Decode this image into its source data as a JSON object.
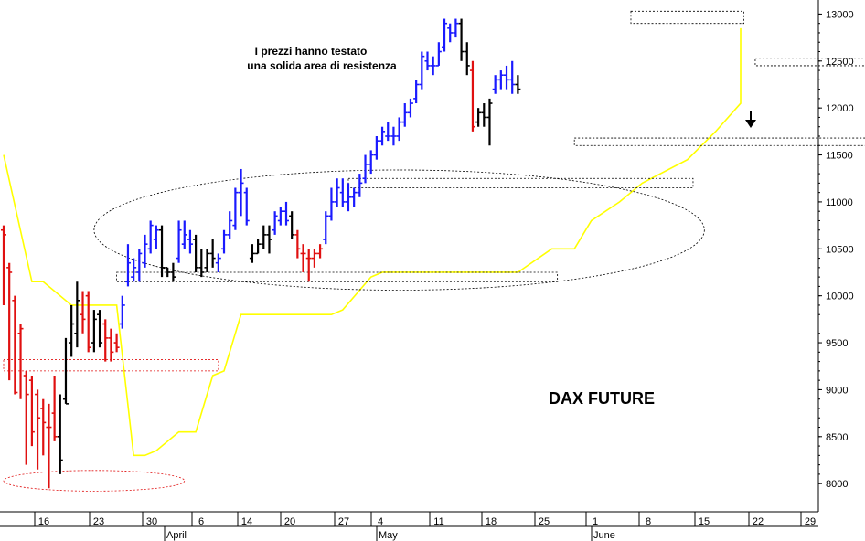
{
  "chart_data": {
    "type": "ohlc",
    "title": "DAX FUTURE",
    "annotation": {
      "line1": "I prezzi hanno testato",
      "line2": "una solida area di resistenza"
    },
    "ylim": [
      7700,
      13150
    ],
    "y_ticks": [
      "8000",
      "8500",
      "9000",
      "9500",
      "10000",
      "10500",
      "11000",
      "11500",
      "12000",
      "12500",
      "13000"
    ],
    "x_ticks": [
      "16",
      "23",
      "30",
      "6",
      "14",
      "20",
      "27",
      "4",
      "11",
      "18",
      "25",
      "1",
      "8",
      "15",
      "22",
      "29"
    ],
    "months": [
      "April",
      "May",
      "June"
    ],
    "colors": {
      "up": "#1a1aff",
      "down": "#e01010",
      "neutral": "#000000",
      "stop_line": "#ffff00",
      "zones": "#000000",
      "support_zone": "#e01010"
    },
    "bars": [
      {
        "c": "red",
        "h": 10750,
        "l": 9900,
        "o": 10700,
        "cl": 10650
      },
      {
        "c": "red",
        "h": 10350,
        "l": 9100,
        "o": 10300,
        "cl": 10250
      },
      {
        "c": "red",
        "h": 10000,
        "l": 8950,
        "o": 9950,
        "cl": 8970
      },
      {
        "c": "red",
        "h": 9700,
        "l": 8900,
        "o": 9600,
        "cl": 9650
      },
      {
        "c": "red",
        "h": 9200,
        "l": 8200,
        "o": 9150,
        "cl": 8950
      },
      {
        "c": "red",
        "h": 9150,
        "l": 8400,
        "o": 9100,
        "cl": 8550
      },
      {
        "c": "red",
        "h": 9000,
        "l": 8150,
        "o": 8950,
        "cl": 8700
      },
      {
        "c": "red",
        "h": 8900,
        "l": 8300,
        "o": 8800,
        "cl": 8650
      },
      {
        "c": "red",
        "h": 8850,
        "l": 7950,
        "o": 8600,
        "cl": 8600
      },
      {
        "c": "red",
        "h": 9150,
        "l": 8450,
        "o": 8750,
        "cl": 8500
      },
      {
        "c": "black",
        "h": 8950,
        "l": 8100,
        "o": 8500,
        "cl": 8250
      },
      {
        "c": "black",
        "h": 9550,
        "l": 8850,
        "o": 8900,
        "cl": 8850
      },
      {
        "c": "black",
        "h": 9900,
        "l": 9350,
        "o": 9500,
        "cl": 9700
      },
      {
        "c": "black",
        "h": 10150,
        "l": 9450,
        "o": 9600,
        "cl": 9950
      },
      {
        "c": "red",
        "h": 10050,
        "l": 9600,
        "o": 9800,
        "cl": 9750
      },
      {
        "c": "red",
        "h": 10050,
        "l": 9400,
        "o": 10000,
        "cl": 9450
      },
      {
        "c": "black",
        "h": 9850,
        "l": 9400,
        "o": 9500,
        "cl": 9750
      },
      {
        "c": "black",
        "h": 9850,
        "l": 9450,
        "o": 9800,
        "cl": 9500
      },
      {
        "c": "red",
        "h": 9750,
        "l": 9300,
        "o": 9700,
        "cl": 9550
      },
      {
        "c": "red",
        "h": 9650,
        "l": 9300,
        "o": 9550,
        "cl": 9400
      },
      {
        "c": "red",
        "h": 9600,
        "l": 9400,
        "o": 9500,
        "cl": 9450
      },
      {
        "c": "blue",
        "h": 10000,
        "l": 9650,
        "o": 9700,
        "cl": 9900
      },
      {
        "c": "blue",
        "h": 10550,
        "l": 10100,
        "o": 10150,
        "cl": 10350
      },
      {
        "c": "blue",
        "h": 10400,
        "l": 10150,
        "o": 10200,
        "cl": 10300
      },
      {
        "c": "blue",
        "h": 10500,
        "l": 10150,
        "o": 10250,
        "cl": 10450
      },
      {
        "c": "blue",
        "h": 10650,
        "l": 10300,
        "o": 10350,
        "cl": 10550
      },
      {
        "c": "blue",
        "h": 10800,
        "l": 10450,
        "o": 10500,
        "cl": 10750
      },
      {
        "c": "blue",
        "h": 10750,
        "l": 10500,
        "o": 10600,
        "cl": 10700
      },
      {
        "c": "black",
        "h": 10750,
        "l": 10200,
        "o": 10700,
        "cl": 10300
      },
      {
        "c": "black",
        "h": 10300,
        "l": 10200,
        "o": 10300,
        "cl": 10250
      },
      {
        "c": "black",
        "h": 10350,
        "l": 10150,
        "o": 10250,
        "cl": 10200
      },
      {
        "c": "blue",
        "h": 10800,
        "l": 10350,
        "o": 10400,
        "cl": 10700
      },
      {
        "c": "blue",
        "h": 10800,
        "l": 10500,
        "o": 10550,
        "cl": 10650
      },
      {
        "c": "blue",
        "h": 10700,
        "l": 10450,
        "o": 10600,
        "cl": 10550
      },
      {
        "c": "black",
        "h": 10650,
        "l": 10250,
        "o": 10600,
        "cl": 10300
      },
      {
        "c": "black",
        "h": 10500,
        "l": 10200,
        "o": 10300,
        "cl": 10250
      },
      {
        "c": "black",
        "h": 10500,
        "l": 10250,
        "o": 10300,
        "cl": 10450
      },
      {
        "c": "black",
        "h": 10600,
        "l": 10300,
        "o": 10450,
        "cl": 10400
      },
      {
        "c": "blue",
        "h": 10450,
        "l": 10250,
        "o": 10350,
        "cl": 10400
      },
      {
        "c": "blue",
        "h": 10700,
        "l": 10450,
        "o": 10500,
        "cl": 10650
      },
      {
        "c": "blue",
        "h": 10900,
        "l": 10600,
        "o": 10650,
        "cl": 10800
      },
      {
        "c": "blue",
        "h": 11150,
        "l": 10700,
        "o": 10750,
        "cl": 11100
      },
      {
        "c": "blue",
        "h": 11350,
        "l": 10850,
        "o": 11100,
        "cl": 11200
      },
      {
        "c": "blue",
        "h": 11150,
        "l": 10750,
        "o": 11100,
        "cl": 10800
      },
      {
        "c": "black",
        "h": 10550,
        "l": 10350,
        "o": 10400,
        "cl": 10450
      },
      {
        "c": "black",
        "h": 10600,
        "l": 10450,
        "o": 10450,
        "cl": 10550
      },
      {
        "c": "black",
        "h": 10750,
        "l": 10500,
        "o": 10550,
        "cl": 10650
      },
      {
        "c": "black",
        "h": 10750,
        "l": 10450,
        "o": 10650,
        "cl": 10600
      },
      {
        "c": "blue",
        "h": 10900,
        "l": 10650,
        "o": 10700,
        "cl": 10850
      },
      {
        "c": "blue",
        "h": 10950,
        "l": 10750,
        "o": 10800,
        "cl": 10900
      },
      {
        "c": "blue",
        "h": 11000,
        "l": 10750,
        "o": 10900,
        "cl": 10800
      },
      {
        "c": "black",
        "h": 10900,
        "l": 10600,
        "o": 10850,
        "cl": 10650
      },
      {
        "c": "red",
        "h": 10700,
        "l": 10400,
        "o": 10650,
        "cl": 10500
      },
      {
        "c": "red",
        "h": 10550,
        "l": 10250,
        "o": 10450,
        "cl": 10450
      },
      {
        "c": "red",
        "h": 10500,
        "l": 10150,
        "o": 10400,
        "cl": 10400
      },
      {
        "c": "red",
        "h": 10500,
        "l": 10300,
        "o": 10400,
        "cl": 10450
      },
      {
        "c": "red",
        "h": 10550,
        "l": 10400,
        "o": 10450,
        "cl": 10500
      },
      {
        "c": "blue",
        "h": 10900,
        "l": 10550,
        "o": 10600,
        "cl": 10850
      },
      {
        "c": "blue",
        "h": 11150,
        "l": 10800,
        "o": 10850,
        "cl": 11000
      },
      {
        "c": "blue",
        "h": 11250,
        "l": 10950,
        "o": 11000,
        "cl": 11150
      },
      {
        "c": "blue",
        "h": 11250,
        "l": 10950,
        "o": 11100,
        "cl": 11000
      },
      {
        "c": "blue",
        "h": 11200,
        "l": 10900,
        "o": 11000,
        "cl": 11050
      },
      {
        "c": "blue",
        "h": 11150,
        "l": 10950,
        "o": 11050,
        "cl": 11100
      },
      {
        "c": "blue",
        "h": 11300,
        "l": 11050,
        "o": 11100,
        "cl": 11200
      },
      {
        "c": "blue",
        "h": 11500,
        "l": 11200,
        "o": 11250,
        "cl": 11400
      },
      {
        "c": "blue",
        "h": 11550,
        "l": 11300,
        "o": 11400,
        "cl": 11500
      },
      {
        "c": "blue",
        "h": 11700,
        "l": 11450,
        "o": 11500,
        "cl": 11650
      },
      {
        "c": "blue",
        "h": 11800,
        "l": 11600,
        "o": 11650,
        "cl": 11750
      },
      {
        "c": "blue",
        "h": 11850,
        "l": 11650,
        "o": 11700,
        "cl": 11700
      },
      {
        "c": "blue",
        "h": 11800,
        "l": 11600,
        "o": 11700,
        "cl": 11700
      },
      {
        "c": "blue",
        "h": 11900,
        "l": 11650,
        "o": 11700,
        "cl": 11850
      },
      {
        "c": "blue",
        "h": 12050,
        "l": 11800,
        "o": 11850,
        "cl": 11950
      },
      {
        "c": "blue",
        "h": 12100,
        "l": 11900,
        "o": 11950,
        "cl": 12050
      },
      {
        "c": "blue",
        "h": 12300,
        "l": 12050,
        "o": 12100,
        "cl": 12250
      },
      {
        "c": "blue",
        "h": 12600,
        "l": 12200,
        "o": 12250,
        "cl": 12550
      },
      {
        "c": "blue",
        "h": 12600,
        "l": 12400,
        "o": 12500,
        "cl": 12450
      },
      {
        "c": "blue",
        "h": 12550,
        "l": 12350,
        "o": 12450,
        "cl": 12450
      },
      {
        "c": "blue",
        "h": 12700,
        "l": 12450,
        "o": 12450,
        "cl": 12600
      },
      {
        "c": "blue",
        "h": 12950,
        "l": 12600,
        "o": 12650,
        "cl": 12900
      },
      {
        "c": "blue",
        "h": 12900,
        "l": 12700,
        "o": 12850,
        "cl": 12800
      },
      {
        "c": "blue",
        "h": 12950,
        "l": 12750,
        "o": 12800,
        "cl": 12900
      },
      {
        "c": "black",
        "h": 12950,
        "l": 12500,
        "o": 12900,
        "cl": 12600
      },
      {
        "c": "black",
        "h": 12700,
        "l": 12350,
        "o": 12600,
        "cl": 12450
      },
      {
        "c": "red",
        "h": 12500,
        "l": 11750,
        "o": 12400,
        "cl": 11800
      },
      {
        "c": "black",
        "h": 12000,
        "l": 11800,
        "o": 11850,
        "cl": 11950
      },
      {
        "c": "black",
        "h": 12050,
        "l": 11800,
        "o": 11950,
        "cl": 11900
      },
      {
        "c": "black",
        "h": 12100,
        "l": 11600,
        "o": 11900,
        "cl": 12050
      },
      {
        "c": "blue",
        "h": 12350,
        "l": 12150,
        "o": 12200,
        "cl": 12300
      },
      {
        "c": "blue",
        "h": 12400,
        "l": 12200,
        "o": 12300,
        "cl": 12350
      },
      {
        "c": "blue",
        "h": 12450,
        "l": 12200,
        "o": 12350,
        "cl": 12300
      },
      {
        "c": "blue",
        "h": 12500,
        "l": 12150,
        "o": 12300,
        "cl": 12250
      },
      {
        "c": "black",
        "h": 12350,
        "l": 12150,
        "o": 12250,
        "cl": 12200
      }
    ],
    "stop_line": [
      [
        0,
        11500
      ],
      [
        5,
        10150
      ],
      [
        7,
        10150
      ],
      [
        12,
        9900
      ],
      [
        19,
        9900
      ],
      [
        20,
        9900
      ],
      [
        23,
        8300
      ],
      [
        25,
        8300
      ],
      [
        27,
        8350
      ],
      [
        31,
        8550
      ],
      [
        34,
        8550
      ],
      [
        37,
        9150
      ],
      [
        39,
        9200
      ],
      [
        42,
        9800
      ],
      [
        49,
        9800
      ],
      [
        58,
        9800
      ],
      [
        60,
        9850
      ],
      [
        65,
        10200
      ],
      [
        67,
        10250
      ],
      [
        82,
        10250
      ],
      [
        91,
        10250
      ],
      [
        97,
        10500
      ],
      [
        101,
        10500
      ],
      [
        104,
        10800
      ],
      [
        109,
        11000
      ],
      [
        113,
        11200
      ],
      [
        121,
        11450
      ],
      [
        126,
        11750
      ],
      [
        131,
        12050
      ],
      [
        134,
        12150
      ],
      [
        140,
        12200
      ],
      [
        144,
        12200
      ],
      [
        147,
        12850
      ],
      [
        153,
        12600
      ],
      [
        163,
        12600
      ],
      [
        165,
        12600
      ]
    ],
    "zones": [
      {
        "x0": 0,
        "x1": 38,
        "y0": 9200,
        "y1": 9320,
        "color": "red"
      },
      {
        "x0": 20,
        "x1": 98,
        "y0": 10150,
        "y1": 10250,
        "color": "black"
      },
      {
        "x0": 61,
        "x1": 122,
        "y0": 11150,
        "y1": 11250,
        "color": "black"
      },
      {
        "x0": 101,
        "x1": 166,
        "y0": 11600,
        "y1": 11680,
        "color": "black"
      },
      {
        "x0": 133,
        "x1": 163,
        "y0": 12450,
        "y1": 12530,
        "color": "black"
      },
      {
        "x0": 111,
        "x1": 131,
        "y0": 12900,
        "y1": 13030,
        "color": "black"
      }
    ],
    "ellipses": [
      {
        "cx": 16,
        "cy": 8030,
        "rx": 16,
        "ry": 110,
        "color": "red"
      },
      {
        "cx": 70,
        "cy": 10700,
        "rx": 54,
        "ry": 640,
        "color": "black"
      }
    ]
  }
}
